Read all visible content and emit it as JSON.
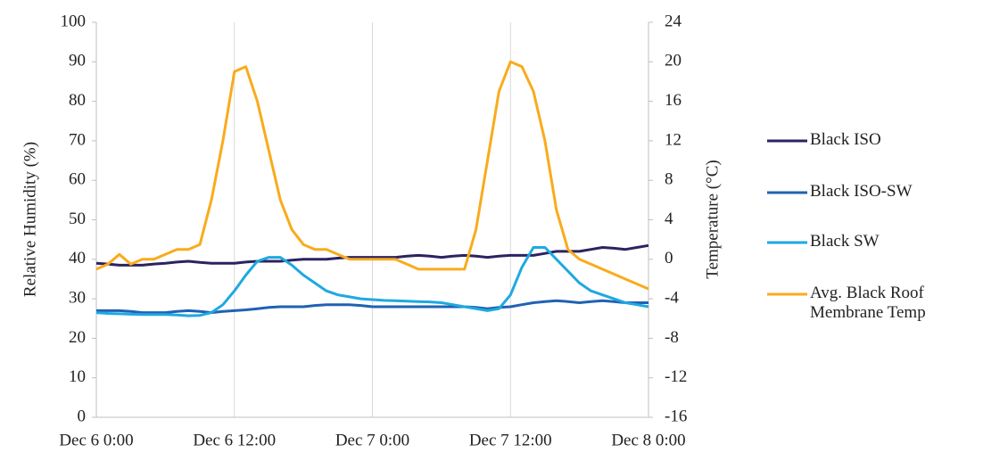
{
  "chart_data": {
    "type": "line",
    "y_label": "Relative Humidity  (%)",
    "y2_label": "Temperature (°C)",
    "x": [
      0,
      1,
      2,
      3,
      4,
      5,
      6,
      7,
      8,
      9,
      10,
      11,
      12,
      13,
      14,
      15,
      16,
      17,
      18,
      19,
      20,
      21,
      22,
      23,
      24,
      25,
      26,
      27,
      28,
      29,
      30,
      31,
      32,
      33,
      34,
      35,
      36,
      37,
      38,
      39,
      40,
      41,
      42,
      43,
      44,
      45,
      46,
      47,
      48
    ],
    "xlim": [
      0,
      48
    ],
    "xticks": [
      {
        "value": 0,
        "label": "Dec 6 0:00"
      },
      {
        "value": 12,
        "label": "Dec 6 12:00"
      },
      {
        "value": 24,
        "label": "Dec 7 0:00"
      },
      {
        "value": 36,
        "label": "Dec 7 12:00"
      },
      {
        "value": 48,
        "label": "Dec 8 0:00"
      }
    ],
    "ylim": [
      0,
      100
    ],
    "yticks": [
      0,
      10,
      20,
      30,
      40,
      50,
      60,
      70,
      80,
      90,
      100
    ],
    "y2lim": [
      -16,
      24
    ],
    "y2ticks": [
      -16,
      -12,
      -8,
      -4,
      0,
      4,
      8,
      12,
      16,
      20,
      24
    ],
    "grid": "x",
    "legend": "right",
    "series": [
      {
        "name": "Black ISO",
        "color": "#2b2361",
        "values": [
          39,
          38.8,
          38.5,
          38.5,
          38.5,
          38.8,
          39,
          39.3,
          39.5,
          39.2,
          39,
          39,
          39,
          39.3,
          39.5,
          39.5,
          39.5,
          39.8,
          40,
          40,
          40,
          40.3,
          40.5,
          40.5,
          40.5,
          40.5,
          40.5,
          40.8,
          41,
          40.8,
          40.5,
          40.8,
          41,
          40.8,
          40.5,
          40.8,
          41,
          41,
          41,
          41.5,
          42,
          42,
          42,
          42.5,
          43,
          42.8,
          42.5,
          43,
          43.5
        ]
      },
      {
        "name": "Black ISO-SW",
        "color": "#1f62b4",
        "values": [
          27,
          27,
          27,
          26.8,
          26.5,
          26.5,
          26.5,
          26.8,
          27,
          26.8,
          26.5,
          26.8,
          27,
          27.2,
          27.5,
          27.8,
          28,
          28,
          28,
          28.3,
          28.5,
          28.5,
          28.5,
          28.3,
          28,
          28,
          28,
          28,
          28,
          28,
          28,
          28,
          28,
          27.8,
          27.5,
          27.8,
          28,
          28.5,
          29,
          29.3,
          29.5,
          29.3,
          29,
          29.3,
          29.5,
          29.3,
          29,
          29,
          29
        ]
      },
      {
        "name": "Black SW",
        "color": "#1ea9e1",
        "values": [
          26.5,
          26.3,
          26.2,
          26.1,
          26,
          26,
          26,
          25.9,
          25.7,
          25.8,
          26.5,
          28.5,
          32,
          36,
          39.5,
          40.5,
          40.5,
          38.5,
          36,
          34,
          32,
          31,
          30.5,
          30,
          29.8,
          29.6,
          29.5,
          29.4,
          29.3,
          29.2,
          29,
          28.5,
          28,
          27.5,
          27,
          27.5,
          31,
          38,
          43,
          43,
          40,
          37,
          34,
          32,
          31,
          30,
          29,
          28.5,
          28
        ]
      },
      {
        "name": "Avg. Black Roof Membrane Temp",
        "color": "#f9ab1c",
        "axis": "y2",
        "values": [
          -1,
          -0.5,
          0.5,
          -0.5,
          0,
          0,
          0.5,
          1,
          1,
          1.5,
          6,
          12,
          19,
          19.5,
          16,
          11,
          6,
          3,
          1.5,
          1,
          1,
          0.5,
          0,
          0,
          0,
          0,
          0,
          -0.5,
          -1,
          -1,
          -1,
          -1,
          -1,
          3,
          10,
          17,
          20,
          19.5,
          17,
          12,
          5,
          1,
          0,
          -0.5,
          -1,
          -1.5,
          -2,
          -2.5,
          -3
        ]
      }
    ]
  }
}
